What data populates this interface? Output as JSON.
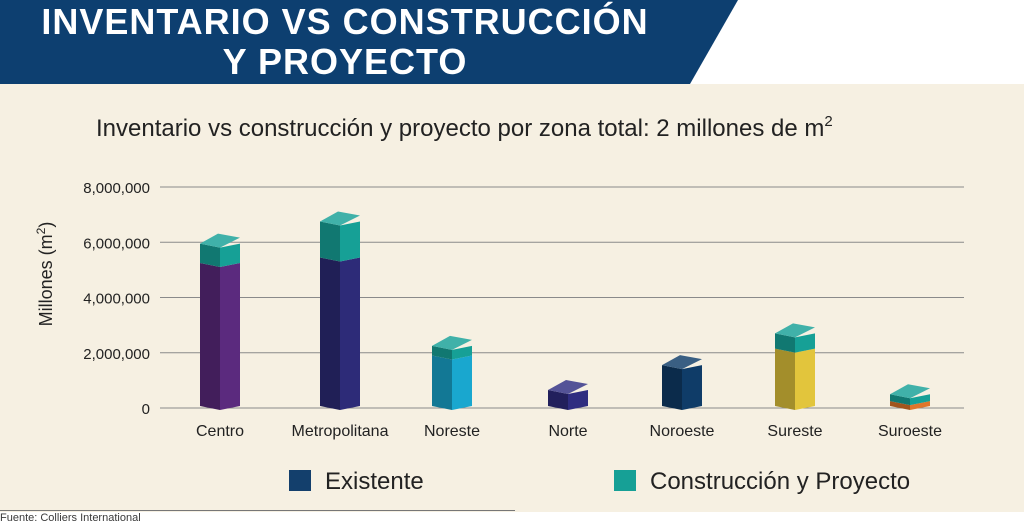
{
  "header": {
    "title_line1": "INVENTARIO VS CONSTRUCCIÓN",
    "title_line2": "Y PROYECTO"
  },
  "source": "Fuente: Colliers International",
  "colors": {
    "banner": "#0d3f70",
    "panel": "#f6f0e2",
    "legend_existente": "#133f6c",
    "legend_construccion": "#16a096",
    "top_segment": "#16a096"
  },
  "chart_data": {
    "type": "bar",
    "stacked": true,
    "title": "Inventario vs construcción y proyecto por zona total: 2 millones de m²",
    "title_main": "Inventario vs construcción y proyecto por zona total: 2 millones de m",
    "title_sup": "2",
    "ylabel_main": "Millones (m",
    "ylabel_sup": "2",
    "ylabel_end": ")",
    "ylim": [
      0,
      8000000
    ],
    "yticks": [
      {
        "value": 0,
        "label": "0"
      },
      {
        "value": 2000000,
        "label": "2,000,000"
      },
      {
        "value": 4000000,
        "label": "4,000,000"
      },
      {
        "value": 6000000,
        "label": "6,000,000"
      },
      {
        "value": 8000000,
        "label": "8,000,000"
      }
    ],
    "grid": true,
    "legend_position": "bottom",
    "categories": [
      "Centro",
      "Metropolitana",
      "Noreste",
      "Norte",
      "Noroeste",
      "Sureste",
      "Suroeste"
    ],
    "bar_colors": [
      "#5b2a7e",
      "#2d2b78",
      "#19a7cf",
      "#2f2d80",
      "#0f3c68",
      "#e2c53c",
      "#e0762a"
    ],
    "series": [
      {
        "name": "Existente",
        "values": [
          5250000,
          5450000,
          1900000,
          650000,
          1550000,
          2150000,
          250000
        ]
      },
      {
        "name": "Construcción y Proyecto",
        "values": [
          700000,
          1300000,
          350000,
          0,
          0,
          550000,
          250000
        ]
      }
    ]
  }
}
